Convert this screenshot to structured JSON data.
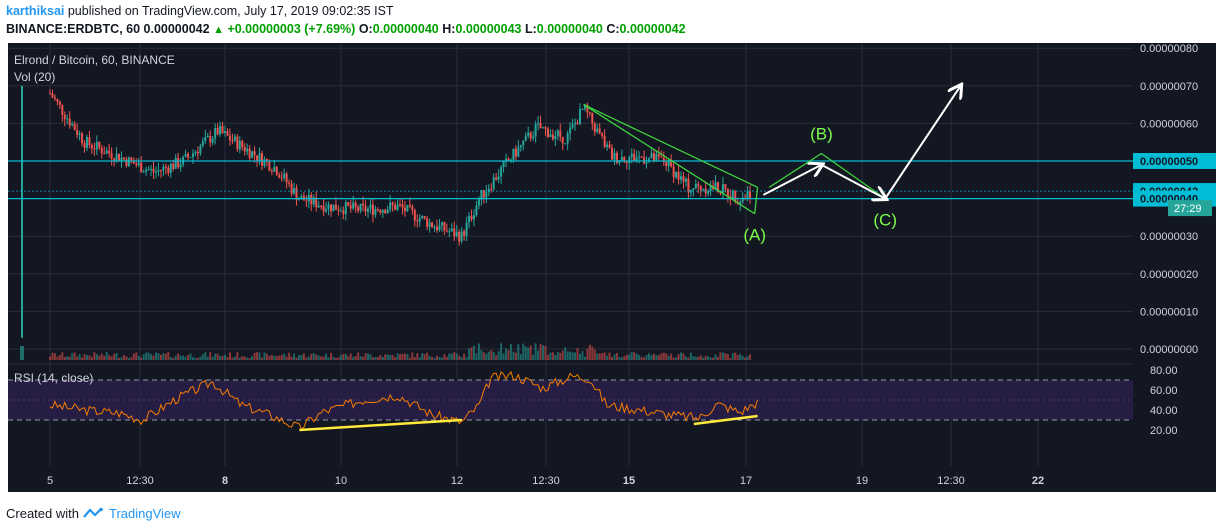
{
  "header": {
    "author": "karthiksai",
    "published_text": "published on TradingView.com, July 17, 2019 09:02:35 IST",
    "symbol_line": "BINANCE:ERDBTC, 60",
    "last_price": "0.00000042",
    "change": "+0.00000003 (+7.69%)",
    "o_label": "O:",
    "o_value": "0.00000040",
    "h_label": "H:",
    "h_value": "0.00000043",
    "l_label": "L:",
    "l_value": "0.00000040",
    "c_label": "C:",
    "c_value": "0.00000042"
  },
  "footer": {
    "created_with": "Created with",
    "brand": "TradingView"
  },
  "colors": {
    "background": "#131722",
    "up": "#26a69a",
    "down": "#ef5350",
    "cyan": "#00bcd4",
    "green_annot": "#7cfc4a",
    "yellow": "#ffeb3b",
    "rsi_line": "#f57c00",
    "rsi_band": "#2a1f4a"
  },
  "chart_data": [
    {
      "type": "candlestick",
      "title": "Elrond / Bitcoin, 60, BINANCE",
      "indicator_label": "Vol (20)",
      "ylim": [
        0,
        8e-07
      ],
      "y_ticks": [
        "0.00000080",
        "0.00000070",
        "0.00000060",
        "0.00000050",
        "0.00000040",
        "0.00000030",
        "0.00000020",
        "0.00000010",
        "0.00000000"
      ],
      "x_ticks": [
        "5",
        "12:30",
        "8",
        "10",
        "12",
        "12:30",
        "15",
        "17",
        "19",
        "12:30",
        "22"
      ],
      "price_labels": [
        {
          "text": "0.00000050",
          "value": 5e-07
        },
        {
          "text": "0.00000042",
          "value": 4.2e-07
        },
        {
          "text": "0.00000040",
          "value": 4e-07
        }
      ],
      "countdown": "27:29",
      "horizontal_levels": [
        5e-07,
        4e-07
      ],
      "close_path": [
        [
          5,
          6.8e-07
        ],
        [
          5.6,
          5.5e-07
        ],
        [
          6.2,
          5.1e-07
        ],
        [
          6.8,
          4.7e-07
        ],
        [
          7.3,
          5e-07
        ],
        [
          7.9,
          5.8e-07
        ],
        [
          8.3,
          5.4e-07
        ],
        [
          8.9,
          4.8e-07
        ],
        [
          9.3,
          4e-07
        ],
        [
          9.8,
          3.8e-07
        ],
        [
          10.4,
          3.7e-07
        ],
        [
          11,
          3.8e-07
        ],
        [
          11.6,
          3.3e-07
        ],
        [
          12.1,
          3e-07
        ],
        [
          12.4,
          4e-07
        ],
        [
          12.9,
          5e-07
        ],
        [
          13.4,
          5.9e-07
        ],
        [
          13.9,
          5.6e-07
        ],
        [
          14.2,
          6.4e-07
        ],
        [
          14.7,
          5.1e-07
        ],
        [
          15.2,
          5.1e-07
        ],
        [
          15.6,
          5e-07
        ],
        [
          16,
          4.3e-07
        ],
        [
          16.5,
          4.3e-07
        ],
        [
          16.9,
          4e-07
        ],
        [
          17.1,
          4.2e-07
        ]
      ],
      "annotations": {
        "labels": [
          "(A)",
          "(B)",
          "(C)"
        ],
        "wave_points": [
          [
            17.5,
            4.3e-07
          ],
          [
            18.3,
            4.9e-07
          ],
          [
            19.4,
            4e-07
          ]
        ],
        "breakout_arrow_target": [
          20.7,
          7e-07
        ],
        "falling_wedge_top": [
          [
            14.2,
            6.5e-07
          ],
          [
            17.2,
            4.3e-07
          ]
        ],
        "falling_wedge_bottom": [
          [
            15.7,
            4.7e-07
          ],
          [
            17.1,
            3.6e-07
          ]
        ],
        "triangle_b": [
          [
            17.4,
            4.3e-07
          ],
          [
            18.3,
            5.2e-07
          ],
          [
            19.4,
            4e-07
          ]
        ]
      }
    },
    {
      "type": "line",
      "title": "RSI (14, close)",
      "ylim": [
        10,
        85
      ],
      "y_ticks": [
        "80.00",
        "60.00",
        "40.00",
        "20.00"
      ],
      "band": [
        30,
        70
      ],
      "series": [
        {
          "values_path": [
            [
              5,
              45
            ],
            [
              5.6,
              40
            ],
            [
              6.2,
              37
            ],
            [
              6.6,
              30
            ],
            [
              7.2,
              52
            ],
            [
              7.8,
              68
            ],
            [
              8.3,
              45
            ],
            [
              8.8,
              35
            ],
            [
              9.3,
              22
            ],
            [
              9.7,
              38
            ],
            [
              10.4,
              50
            ],
            [
              11,
              55
            ],
            [
              11.6,
              35
            ],
            [
              12.1,
              28
            ],
            [
              12.4,
              45
            ],
            [
              12.6,
              72
            ],
            [
              13,
              75
            ],
            [
              13.5,
              62
            ],
            [
              14,
              74
            ],
            [
              14.3,
              72
            ],
            [
              14.6,
              45
            ],
            [
              15.2,
              40
            ],
            [
              15.7,
              35
            ],
            [
              16.2,
              32
            ],
            [
              16.5,
              46
            ],
            [
              16.9,
              38
            ],
            [
              17.2,
              48
            ]
          ]
        }
      ],
      "divergence_lines": [
        [
          [
            9.3,
            20
          ],
          [
            12.1,
            30
          ]
        ],
        [
          [
            16.1,
            26
          ],
          [
            17.2,
            34
          ]
        ]
      ]
    }
  ]
}
